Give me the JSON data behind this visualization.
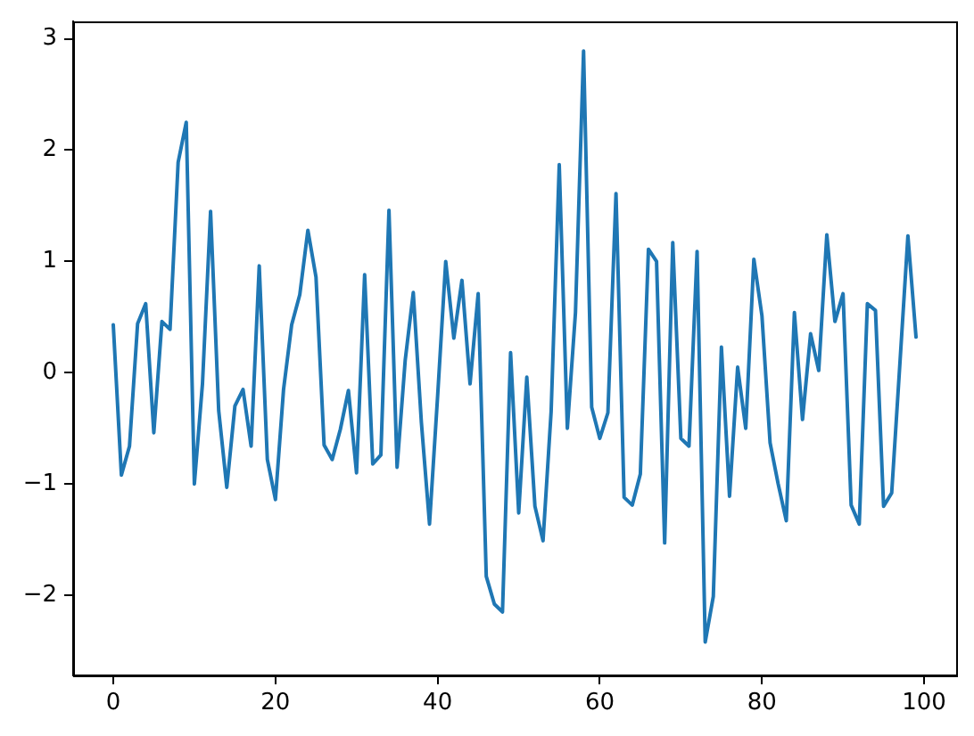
{
  "chart_data": {
    "type": "line",
    "color": "#1f77b4",
    "x": [
      0,
      1,
      2,
      3,
      4,
      5,
      6,
      7,
      8,
      9,
      10,
      11,
      12,
      13,
      14,
      15,
      16,
      17,
      18,
      19,
      20,
      21,
      22,
      23,
      24,
      25,
      26,
      27,
      28,
      29,
      30,
      31,
      32,
      33,
      34,
      35,
      36,
      37,
      38,
      39,
      40,
      41,
      42,
      43,
      44,
      45,
      46,
      47,
      48,
      49,
      50,
      51,
      52,
      53,
      54,
      55,
      56,
      57,
      58,
      59,
      60,
      61,
      62,
      63,
      64,
      65,
      66,
      67,
      68,
      69,
      70,
      71,
      72,
      73,
      74,
      75,
      76,
      77,
      78,
      79,
      80,
      81,
      82,
      83,
      84,
      85,
      86,
      87,
      88,
      89,
      90,
      91,
      92,
      93,
      94,
      95,
      96,
      97,
      98,
      99
    ],
    "values": [
      0.43,
      -0.92,
      -0.66,
      0.44,
      0.62,
      -0.54,
      0.46,
      0.39,
      1.89,
      2.25,
      -1.0,
      -0.1,
      1.45,
      -0.34,
      -1.03,
      -0.3,
      -0.15,
      -0.66,
      0.96,
      -0.78,
      -1.14,
      -0.15,
      0.43,
      0.7,
      1.28,
      0.86,
      -0.65,
      -0.78,
      -0.51,
      -0.16,
      -0.9,
      0.88,
      -0.82,
      -0.74,
      1.46,
      -0.85,
      0.11,
      0.72,
      -0.45,
      -1.36,
      -0.21,
      1.0,
      0.31,
      0.83,
      -0.1,
      0.71,
      -1.83,
      -2.08,
      -2.15,
      0.18,
      -1.26,
      -0.04,
      -1.2,
      -1.51,
      -0.35,
      1.87,
      -0.5,
      0.54,
      2.89,
      -0.31,
      -0.59,
      -0.36,
      1.61,
      -1.12,
      -1.19,
      -0.91,
      1.11,
      1.0,
      -1.53,
      1.17,
      -0.59,
      -0.66,
      1.09,
      -2.42,
      -2.01,
      0.23,
      -1.11,
      0.05,
      -0.5,
      1.02,
      0.51,
      -0.63,
      -1.0,
      -1.33,
      0.54,
      -0.42,
      0.35,
      0.02,
      1.24,
      0.46,
      0.71,
      -1.19,
      -1.36,
      0.62,
      0.56,
      -1.2,
      -1.08,
      0.07,
      1.23,
      0.32
    ],
    "xlim": [
      -4.95,
      103.95
    ],
    "ylim": [
      -2.72,
      3.16
    ],
    "xticks": [
      0,
      20,
      40,
      60,
      80,
      100
    ],
    "yticks": [
      {
        "value": -2,
        "label": "−2"
      },
      {
        "value": -1,
        "label": "−1"
      },
      0,
      1,
      2,
      3
    ]
  }
}
